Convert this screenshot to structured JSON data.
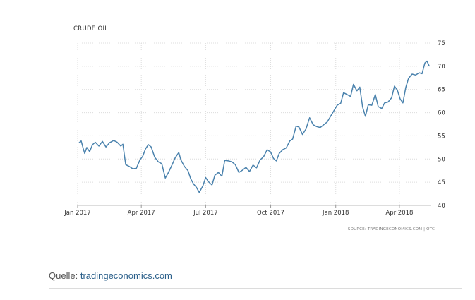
{
  "chart_data": {
    "type": "line",
    "title": "CRUDE OIL",
    "source": "SOURCE: TRADINGECONOMICS.COM | OTC",
    "x_axis": {
      "start": "2017-01-01",
      "end": "2018-05-15",
      "tick_labels": [
        "Jan 2017",
        "Apr 2017",
        "Jul 2017",
        "Oct 2017",
        "Jan 2018",
        "Apr 2018"
      ],
      "tick_dates": [
        "2017-01-01",
        "2017-04-01",
        "2017-07-01",
        "2017-10-01",
        "2018-01-01",
        "2018-04-01"
      ]
    },
    "y_axis": {
      "ticks": [
        40,
        45,
        50,
        55,
        60,
        65,
        70,
        75
      ],
      "ylim": [
        40,
        75
      ],
      "position": "right"
    },
    "grid": true,
    "series": [
      {
        "color": "#4a82ad",
        "points": [
          [
            "2017-01-03",
            53.5
          ],
          [
            "2017-01-06",
            53.9
          ],
          [
            "2017-01-09",
            52.2
          ],
          [
            "2017-01-11",
            51.2
          ],
          [
            "2017-01-14",
            52.5
          ],
          [
            "2017-01-18",
            51.6
          ],
          [
            "2017-01-22",
            53.1
          ],
          [
            "2017-01-26",
            53.6
          ],
          [
            "2017-01-31",
            52.8
          ],
          [
            "2017-02-05",
            53.8
          ],
          [
            "2017-02-10",
            52.6
          ],
          [
            "2017-02-15",
            53.5
          ],
          [
            "2017-02-21",
            54.0
          ],
          [
            "2017-02-26",
            53.6
          ],
          [
            "2017-03-03",
            52.8
          ],
          [
            "2017-03-06",
            53.2
          ],
          [
            "2017-03-10",
            48.8
          ],
          [
            "2017-03-15",
            48.4
          ],
          [
            "2017-03-20",
            47.9
          ],
          [
            "2017-03-25",
            48.0
          ],
          [
            "2017-03-30",
            49.8
          ],
          [
            "2017-04-03",
            50.6
          ],
          [
            "2017-04-07",
            52.2
          ],
          [
            "2017-04-11",
            53.1
          ],
          [
            "2017-04-15",
            52.6
          ],
          [
            "2017-04-20",
            50.4
          ],
          [
            "2017-04-25",
            49.4
          ],
          [
            "2017-04-30",
            49.0
          ],
          [
            "2017-05-05",
            45.9
          ],
          [
            "2017-05-09",
            47.0
          ],
          [
            "2017-05-14",
            48.6
          ],
          [
            "2017-05-19",
            50.3
          ],
          [
            "2017-05-24",
            51.4
          ],
          [
            "2017-05-27",
            49.8
          ],
          [
            "2017-06-01",
            48.4
          ],
          [
            "2017-06-06",
            47.5
          ],
          [
            "2017-06-10",
            45.7
          ],
          [
            "2017-06-14",
            44.6
          ],
          [
            "2017-06-18",
            43.9
          ],
          [
            "2017-06-22",
            42.8
          ],
          [
            "2017-06-27",
            44.2
          ],
          [
            "2017-07-01",
            46.0
          ],
          [
            "2017-07-05",
            45.1
          ],
          [
            "2017-07-10",
            44.4
          ],
          [
            "2017-07-14",
            46.5
          ],
          [
            "2017-07-19",
            47.1
          ],
          [
            "2017-07-24",
            46.3
          ],
          [
            "2017-07-28",
            49.7
          ],
          [
            "2017-08-02",
            49.6
          ],
          [
            "2017-08-07",
            49.4
          ],
          [
            "2017-08-12",
            48.8
          ],
          [
            "2017-08-17",
            47.1
          ],
          [
            "2017-08-22",
            47.6
          ],
          [
            "2017-08-27",
            48.2
          ],
          [
            "2017-09-01",
            47.3
          ],
          [
            "2017-09-06",
            48.7
          ],
          [
            "2017-09-11",
            48.1
          ],
          [
            "2017-09-16",
            49.8
          ],
          [
            "2017-09-21",
            50.5
          ],
          [
            "2017-09-26",
            52.0
          ],
          [
            "2017-10-01",
            51.5
          ],
          [
            "2017-10-05",
            50.1
          ],
          [
            "2017-10-09",
            49.6
          ],
          [
            "2017-10-13",
            51.2
          ],
          [
            "2017-10-18",
            52.0
          ],
          [
            "2017-10-23",
            52.4
          ],
          [
            "2017-10-28",
            53.9
          ],
          [
            "2017-11-01",
            54.3
          ],
          [
            "2017-11-06",
            57.1
          ],
          [
            "2017-11-10",
            56.9
          ],
          [
            "2017-11-15",
            55.3
          ],
          [
            "2017-11-20",
            56.5
          ],
          [
            "2017-11-25",
            58.9
          ],
          [
            "2017-11-30",
            57.4
          ],
          [
            "2017-12-05",
            57.0
          ],
          [
            "2017-12-10",
            56.8
          ],
          [
            "2017-12-15",
            57.4
          ],
          [
            "2017-12-20",
            58.0
          ],
          [
            "2017-12-25",
            59.3
          ],
          [
            "2017-12-29",
            60.3
          ],
          [
            "2018-01-03",
            61.6
          ],
          [
            "2018-01-08",
            62.0
          ],
          [
            "2018-01-12",
            64.3
          ],
          [
            "2018-01-17",
            63.9
          ],
          [
            "2018-01-22",
            63.5
          ],
          [
            "2018-01-26",
            66.1
          ],
          [
            "2018-01-31",
            64.7
          ],
          [
            "2018-02-04",
            65.5
          ],
          [
            "2018-02-08",
            61.2
          ],
          [
            "2018-02-12",
            59.2
          ],
          [
            "2018-02-16",
            61.7
          ],
          [
            "2018-02-21",
            61.6
          ],
          [
            "2018-02-26",
            63.9
          ],
          [
            "2018-03-02",
            61.3
          ],
          [
            "2018-03-07",
            60.9
          ],
          [
            "2018-03-11",
            62.1
          ],
          [
            "2018-03-16",
            62.3
          ],
          [
            "2018-03-21",
            63.2
          ],
          [
            "2018-03-25",
            65.7
          ],
          [
            "2018-03-29",
            64.9
          ],
          [
            "2018-04-02",
            63.0
          ],
          [
            "2018-04-06",
            62.1
          ],
          [
            "2018-04-10",
            65.4
          ],
          [
            "2018-04-14",
            67.4
          ],
          [
            "2018-04-19",
            68.3
          ],
          [
            "2018-04-24",
            68.1
          ],
          [
            "2018-04-29",
            68.6
          ],
          [
            "2018-05-03",
            68.4
          ],
          [
            "2018-05-07",
            70.7
          ],
          [
            "2018-05-10",
            71.1
          ],
          [
            "2018-05-13",
            70.1
          ]
        ]
      }
    ]
  },
  "caption": {
    "label": "Quelle:",
    "link": "tradingeconomics.com"
  }
}
